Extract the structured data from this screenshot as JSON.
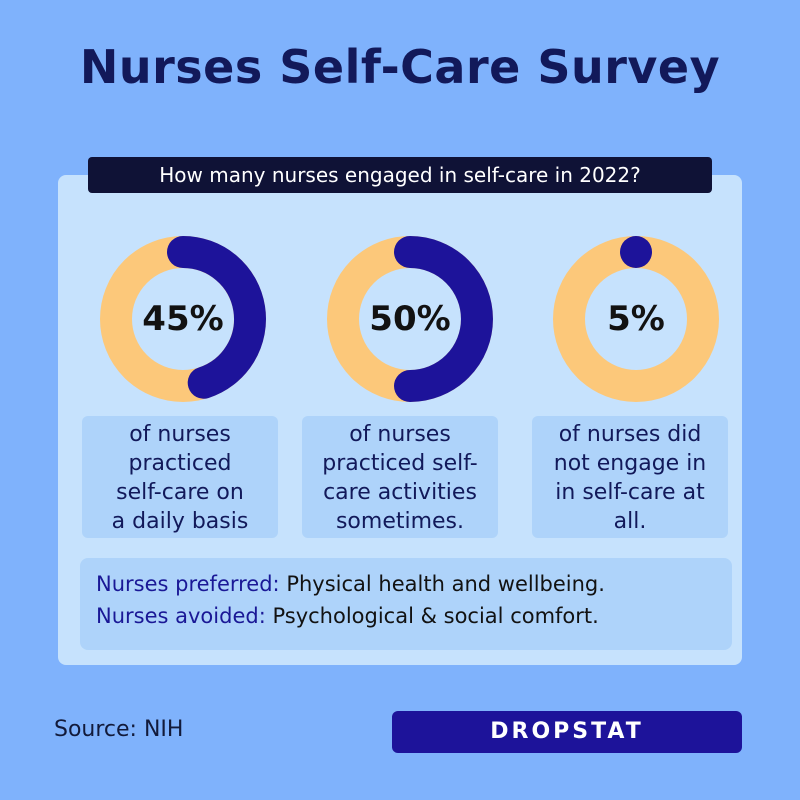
{
  "title": "Nurses Self-Care Survey",
  "question": "How many nurses engaged in self-care in 2022?",
  "colors": {
    "background": "#7fb2fc",
    "panel": "#c6e2fd",
    "ring_base": "#fcc87a",
    "ring_value": "#1d139a",
    "title": "#12195a",
    "brand": "#1d139a"
  },
  "chart_data": {
    "type": "donut",
    "items": [
      {
        "value": 45,
        "label": "45%",
        "description": [
          "of nurses",
          "practiced",
          "self-care  on",
          "a daily basis"
        ]
      },
      {
        "value": 50,
        "label": "50%",
        "description": [
          "of nurses",
          "practiced self-",
          "care activities",
          "sometimes."
        ]
      },
      {
        "value": 5,
        "label": "5%",
        "description": [
          "of nurses did",
          "not engage in",
          "in self-care at",
          "all."
        ]
      }
    ]
  },
  "preferences": {
    "preferred_label": "Nurses preferred:",
    "preferred_value": "Physical health and wellbeing.",
    "avoided_label": "Nurses avoided:",
    "avoided_value": "Psychological & social comfort."
  },
  "source": "Source: NIH",
  "brand": {
    "logo_text": "DROPSTAT",
    "logo_icon": "dropstat-logo"
  }
}
